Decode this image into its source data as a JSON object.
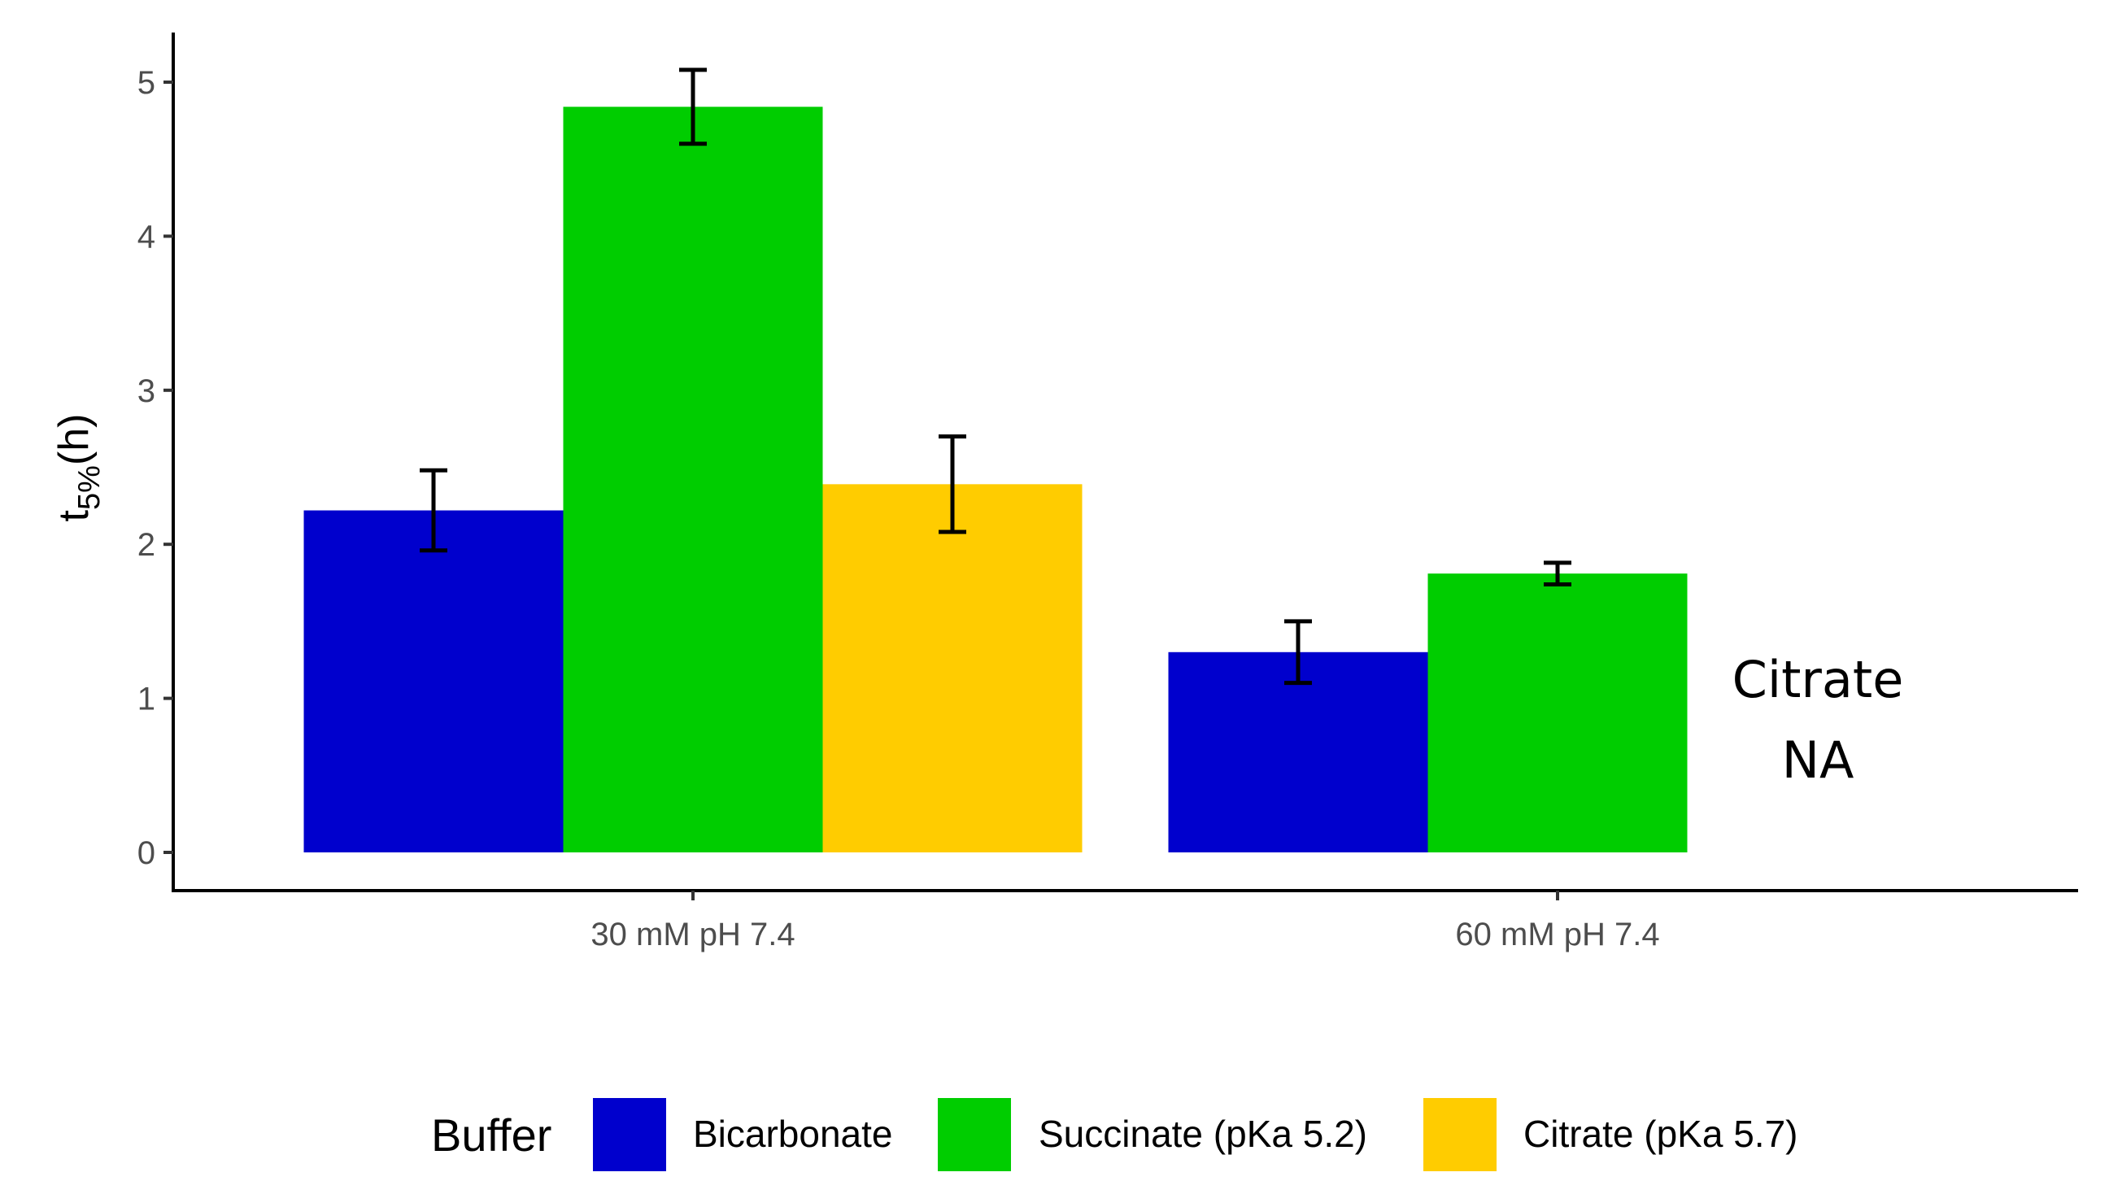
{
  "chart_data": {
    "type": "bar",
    "title": "",
    "xlabel": "",
    "ylabel": {
      "base": "t",
      "subscript": "5%",
      "suffix": "(h)"
    },
    "ylim": [
      0,
      5.3
    ],
    "yticks": [
      "0",
      "1",
      "2",
      "3",
      "4",
      "5"
    ],
    "categories": [
      "30 mM pH 7.4",
      "60 mM pH 7.4"
    ],
    "series": [
      {
        "name": "Bicarbonate",
        "color": "#0000CD",
        "values": [
          2.22,
          1.3
        ],
        "errors": [
          0.26,
          0.2
        ]
      },
      {
        "name": "Succinate (pKa 5.2)",
        "color": "#00CD00",
        "values": [
          4.84,
          1.81
        ],
        "errors": [
          0.24,
          0.07
        ]
      },
      {
        "name": "Citrate (pKa 5.7)",
        "color": "#FFCC00",
        "values": [
          2.39,
          null
        ],
        "errors": [
          0.31,
          null
        ]
      }
    ],
    "legend": {
      "title": "Buffer",
      "position": "bottom"
    },
    "annotations": [
      {
        "line1": "Citrate",
        "line2": "NA"
      }
    ],
    "grid": false
  }
}
